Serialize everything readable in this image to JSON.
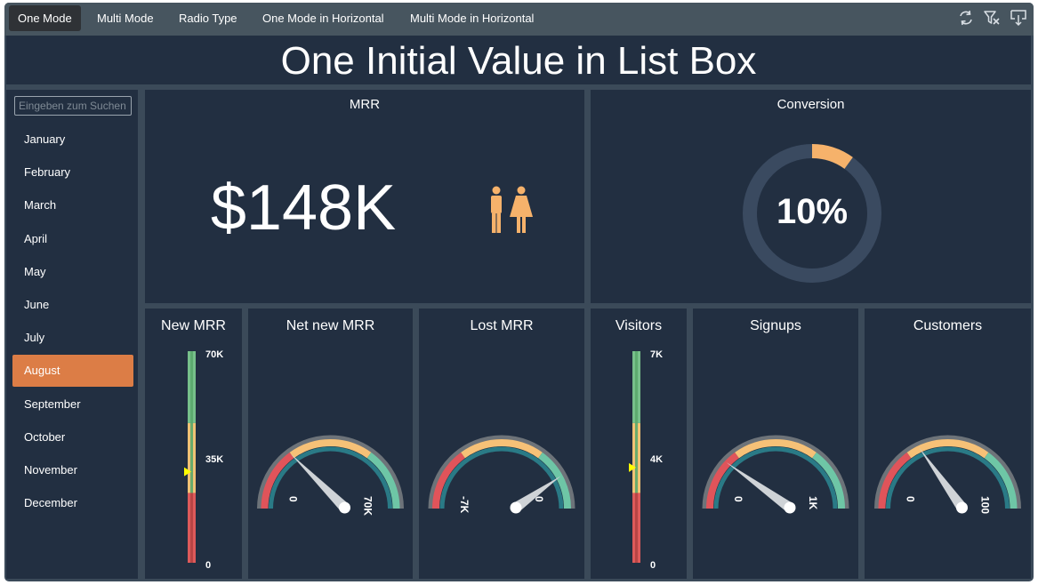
{
  "tabs": [
    {
      "label": "One Mode",
      "active": true
    },
    {
      "label": "Multi Mode",
      "active": false
    },
    {
      "label": "Radio Type",
      "active": false
    },
    {
      "label": "One Mode in Horizontal",
      "active": false
    },
    {
      "label": "Multi Mode in Horizontal",
      "active": false
    }
  ],
  "toolbar_icons": [
    "refresh-icon",
    "clear-filter-icon",
    "export-icon"
  ],
  "title": "One Initial Value in List Box",
  "search": {
    "placeholder": "Eingeben zum Suchen",
    "value": ""
  },
  "months": {
    "items": [
      "January",
      "February",
      "March",
      "April",
      "May",
      "June",
      "July",
      "August",
      "September",
      "October",
      "November",
      "December"
    ],
    "selected": "August"
  },
  "mrr": {
    "title": "MRR",
    "value": "$148K",
    "icon": "male-female-icon",
    "icon_color": "#f6b26b"
  },
  "conversion": {
    "title": "Conversion",
    "value": "10%",
    "fraction": 0.1,
    "color": "#f6b26b",
    "track_color": "#3a4a60"
  },
  "bullets": {
    "new_mrr": {
      "title": "New MRR",
      "top": "70K",
      "mid": "35K",
      "bottom": "0",
      "marker": 0.43
    },
    "visitors": {
      "title": "Visitors",
      "top": "7K",
      "mid": "4K",
      "bottom": "0",
      "marker": 0.45
    }
  },
  "gauges": {
    "net_new_mrr": {
      "title": "Net new MRR",
      "min": "0",
      "max": "70K",
      "needle": 0.3
    },
    "lost_mrr": {
      "title": "Lost MRR",
      "min": "-7K",
      "max": "0",
      "needle": 0.84
    },
    "signups": {
      "title": "Signups",
      "min": "0",
      "max": "1K",
      "needle": 0.24
    },
    "customers": {
      "title": "Customers",
      "min": "0",
      "max": "100",
      "needle": 0.36
    }
  },
  "colors": {
    "red": "#e0545a",
    "yellow": "#f6c177",
    "green": "#6ec6a6",
    "teal": "#2a7a86",
    "rim": "#6d7379",
    "accent": "#dc7d46",
    "marker": "#ffff00"
  }
}
